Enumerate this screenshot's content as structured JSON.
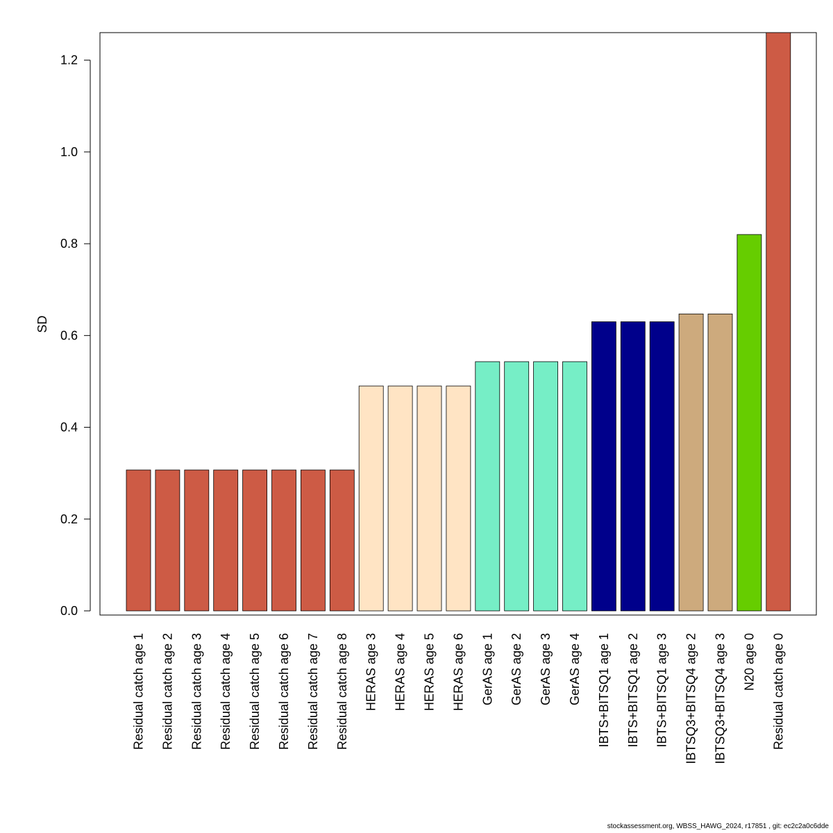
{
  "chart_data": {
    "type": "bar",
    "ylabel": "SD",
    "xlabel": "",
    "ylim": [
      0,
      1.26
    ],
    "yticks": [
      "0.0",
      "0.2",
      "0.4",
      "0.6",
      "0.8",
      "1.0",
      "1.2"
    ],
    "categories": [
      "Residual catch age 1",
      "Residual catch age 2",
      "Residual catch age 3",
      "Residual catch age 4",
      "Residual catch age 5",
      "Residual catch age 6",
      "Residual catch age 7",
      "Residual catch age 8",
      "HERAS age 3",
      "HERAS age 4",
      "HERAS age 5",
      "HERAS age 6",
      "GerAS age 1",
      "GerAS age 2",
      "GerAS age 3",
      "GerAS age 4",
      "IBTS+BITSQ1 age 1",
      "IBTS+BITSQ1 age 2",
      "IBTS+BITSQ1 age 3",
      "IBTSQ3+BITSQ4 age 2",
      "IBTSQ3+BITSQ4 age 3",
      "N20 age 0",
      "Residual catch age 0"
    ],
    "values": [
      0.307,
      0.307,
      0.307,
      0.307,
      0.307,
      0.307,
      0.307,
      0.307,
      0.49,
      0.49,
      0.49,
      0.49,
      0.543,
      0.543,
      0.543,
      0.543,
      0.63,
      0.63,
      0.63,
      0.647,
      0.647,
      0.82,
      1.26
    ],
    "colors": [
      "#CD5B45",
      "#CD5B45",
      "#CD5B45",
      "#CD5B45",
      "#CD5B45",
      "#CD5B45",
      "#CD5B45",
      "#CD5B45",
      "#FFE4C4",
      "#FFE4C4",
      "#FFE4C4",
      "#FFE4C4",
      "#76EEC6",
      "#76EEC6",
      "#76EEC6",
      "#76EEC6",
      "#00008B",
      "#00008B",
      "#00008B",
      "#CDAA7D",
      "#CDAA7D",
      "#66CD00",
      "#CD5B45"
    ],
    "grid": false,
    "legend": "none"
  },
  "footer": "stockassessment.org, WBSS_HAWG_2024, r17851 , git: ec2c2a0c6dde"
}
